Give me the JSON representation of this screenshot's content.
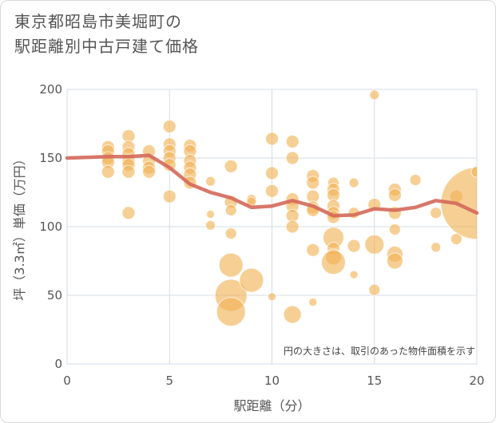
{
  "title_line1": "東京都昭島市美堀町の",
  "title_line2": "駅距離別中古戸建て価格",
  "colors": {
    "bubble": "#f0b254",
    "line": "#d4685a",
    "grid": "#d6dde3",
    "plot_bg": "#ffffff"
  },
  "chart_data": {
    "type": "scatter",
    "title": "東京都昭島市美堀町の駅距離別中古戸建て価格",
    "xlabel": "駅距離（分）",
    "ylabel": "坪（3.3㎡）単価（万円）",
    "xlim": [
      0,
      20
    ],
    "ylim": [
      0,
      200
    ],
    "xticks": [
      "0",
      "5",
      "10",
      "15",
      "20"
    ],
    "yticks": [
      "0",
      "50",
      "100",
      "150",
      "200"
    ],
    "grid": true,
    "note": "円の大きさは、取引のあった物件面積を示す",
    "bubbles": [
      {
        "x": 2,
        "y": 158,
        "r": 8
      },
      {
        "x": 2,
        "y": 155,
        "r": 8
      },
      {
        "x": 2,
        "y": 150,
        "r": 8
      },
      {
        "x": 2,
        "y": 147,
        "r": 8
      },
      {
        "x": 2,
        "y": 140,
        "r": 8
      },
      {
        "x": 3,
        "y": 166,
        "r": 8
      },
      {
        "x": 3,
        "y": 158,
        "r": 8
      },
      {
        "x": 3,
        "y": 153,
        "r": 8
      },
      {
        "x": 3,
        "y": 148,
        "r": 8
      },
      {
        "x": 3,
        "y": 145,
        "r": 8
      },
      {
        "x": 3,
        "y": 140,
        "r": 8
      },
      {
        "x": 3,
        "y": 110,
        "r": 8
      },
      {
        "x": 4,
        "y": 155,
        "r": 8
      },
      {
        "x": 4,
        "y": 148,
        "r": 8
      },
      {
        "x": 4,
        "y": 143,
        "r": 8
      },
      {
        "x": 4,
        "y": 140,
        "r": 8
      },
      {
        "x": 5,
        "y": 173,
        "r": 8
      },
      {
        "x": 5,
        "y": 160,
        "r": 8
      },
      {
        "x": 5,
        "y": 155,
        "r": 8
      },
      {
        "x": 5,
        "y": 150,
        "r": 8
      },
      {
        "x": 5,
        "y": 145,
        "r": 8
      },
      {
        "x": 5,
        "y": 122,
        "r": 8
      },
      {
        "x": 6,
        "y": 159,
        "r": 8
      },
      {
        "x": 6,
        "y": 155,
        "r": 8
      },
      {
        "x": 6,
        "y": 148,
        "r": 8
      },
      {
        "x": 6,
        "y": 143,
        "r": 8
      },
      {
        "x": 6,
        "y": 138,
        "r": 8
      },
      {
        "x": 6,
        "y": 132,
        "r": 8
      },
      {
        "x": 7,
        "y": 133,
        "r": 6
      },
      {
        "x": 7,
        "y": 109,
        "r": 5
      },
      {
        "x": 7,
        "y": 101,
        "r": 6
      },
      {
        "x": 8,
        "y": 144,
        "r": 8
      },
      {
        "x": 8,
        "y": 118,
        "r": 8
      },
      {
        "x": 8,
        "y": 112,
        "r": 7
      },
      {
        "x": 8,
        "y": 95,
        "r": 7
      },
      {
        "x": 8,
        "y": 72,
        "r": 15
      },
      {
        "x": 8,
        "y": 50,
        "r": 20
      },
      {
        "x": 8,
        "y": 38,
        "r": 18
      },
      {
        "x": 9,
        "y": 120,
        "r": 6
      },
      {
        "x": 9,
        "y": 118,
        "r": 6
      },
      {
        "x": 9,
        "y": 61,
        "r": 15
      },
      {
        "x": 10,
        "y": 164,
        "r": 8
      },
      {
        "x": 10,
        "y": 139,
        "r": 8
      },
      {
        "x": 10,
        "y": 126,
        "r": 8
      },
      {
        "x": 10,
        "y": 49,
        "r": 5
      },
      {
        "x": 11,
        "y": 162,
        "r": 8
      },
      {
        "x": 11,
        "y": 150,
        "r": 8
      },
      {
        "x": 11,
        "y": 120,
        "r": 8
      },
      {
        "x": 11,
        "y": 115,
        "r": 8
      },
      {
        "x": 11,
        "y": 108,
        "r": 8
      },
      {
        "x": 11,
        "y": 100,
        "r": 8
      },
      {
        "x": 11,
        "y": 36,
        "r": 11
      },
      {
        "x": 12,
        "y": 137,
        "r": 8
      },
      {
        "x": 12,
        "y": 132,
        "r": 8
      },
      {
        "x": 12,
        "y": 122,
        "r": 8
      },
      {
        "x": 12,
        "y": 114,
        "r": 8
      },
      {
        "x": 12,
        "y": 112,
        "r": 8
      },
      {
        "x": 12,
        "y": 83,
        "r": 8
      },
      {
        "x": 12,
        "y": 45,
        "r": 5
      },
      {
        "x": 13,
        "y": 132,
        "r": 7
      },
      {
        "x": 13,
        "y": 127,
        "r": 8
      },
      {
        "x": 13,
        "y": 123,
        "r": 8
      },
      {
        "x": 13,
        "y": 115,
        "r": 8
      },
      {
        "x": 13,
        "y": 110,
        "r": 8
      },
      {
        "x": 13,
        "y": 107,
        "r": 8
      },
      {
        "x": 13,
        "y": 92,
        "r": 13
      },
      {
        "x": 13,
        "y": 84,
        "r": 8
      },
      {
        "x": 13,
        "y": 78,
        "r": 10
      },
      {
        "x": 13,
        "y": 74,
        "r": 15
      },
      {
        "x": 14,
        "y": 132,
        "r": 6
      },
      {
        "x": 14,
        "y": 110,
        "r": 7
      },
      {
        "x": 14,
        "y": 86,
        "r": 8
      },
      {
        "x": 14,
        "y": 65,
        "r": 5
      },
      {
        "x": 15,
        "y": 196,
        "r": 6
      },
      {
        "x": 15,
        "y": 116,
        "r": 8
      },
      {
        "x": 15,
        "y": 87,
        "r": 12
      },
      {
        "x": 15,
        "y": 54,
        "r": 7
      },
      {
        "x": 16,
        "y": 127,
        "r": 8
      },
      {
        "x": 16,
        "y": 123,
        "r": 8
      },
      {
        "x": 16,
        "y": 110,
        "r": 8
      },
      {
        "x": 16,
        "y": 98,
        "r": 7
      },
      {
        "x": 16,
        "y": 80,
        "r": 10
      },
      {
        "x": 16,
        "y": 75,
        "r": 10
      },
      {
        "x": 17,
        "y": 134,
        "r": 7
      },
      {
        "x": 18,
        "y": 110,
        "r": 7
      },
      {
        "x": 18,
        "y": 85,
        "r": 6
      },
      {
        "x": 19,
        "y": 122,
        "r": 8
      },
      {
        "x": 19,
        "y": 91,
        "r": 7
      },
      {
        "x": 20,
        "y": 117,
        "r": 45
      },
      {
        "x": 20,
        "y": 140,
        "r": 7
      }
    ],
    "trend_line": {
      "x": [
        0,
        1,
        2,
        3,
        4,
        5,
        6,
        7,
        8,
        9,
        10,
        11,
        12,
        13,
        14,
        15,
        16,
        17,
        18,
        19,
        20
      ],
      "y": [
        150,
        150.5,
        151,
        151,
        152,
        143,
        131,
        125,
        121,
        114,
        115,
        119,
        115,
        108,
        108.5,
        113,
        112,
        114,
        119,
        117,
        110
      ]
    }
  }
}
